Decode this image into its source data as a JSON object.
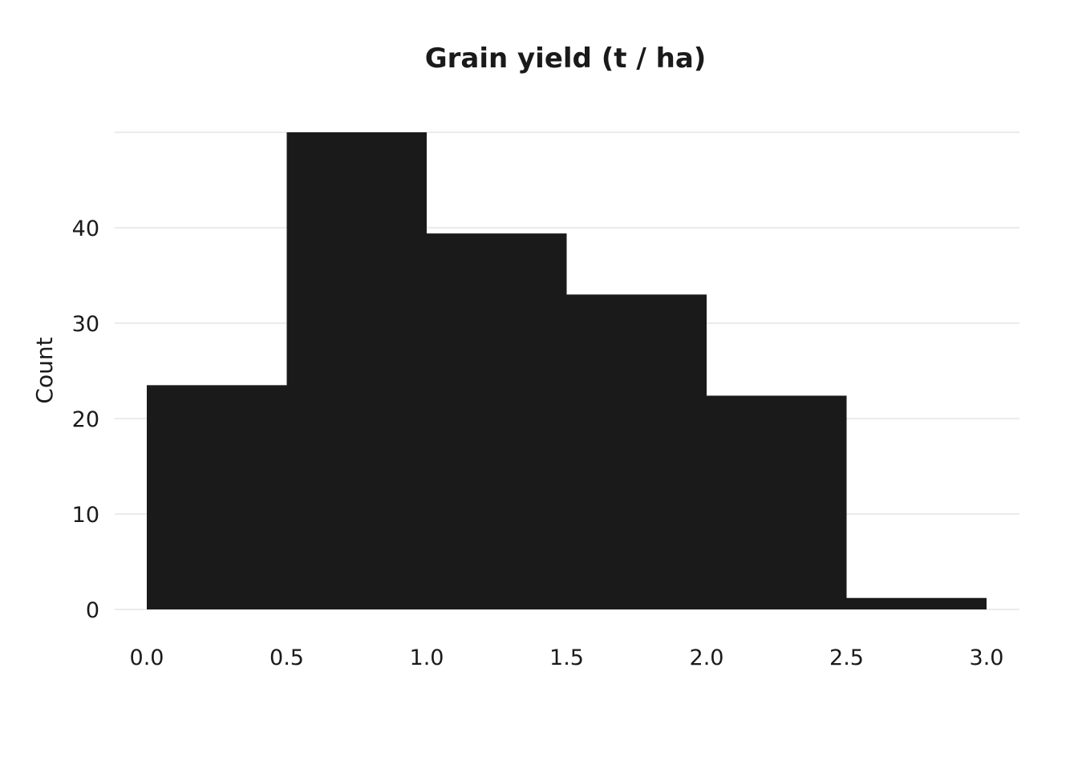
{
  "chart_data": {
    "type": "bar",
    "title": "Grain yield (t / ha)",
    "xlabel": "",
    "ylabel": "Count",
    "bin_edges": [
      0.0,
      0.5,
      1.0,
      1.5,
      2.0,
      2.5,
      3.0
    ],
    "values": [
      23.5,
      50,
      39.4,
      33,
      22.4,
      1.2
    ],
    "xlim": [
      0,
      3
    ],
    "ylim": [
      0,
      50
    ],
    "x_ticks": [
      0.0,
      0.5,
      1.0,
      1.5,
      2.0,
      2.5,
      3.0
    ],
    "x_tick_labels": [
      "0.0",
      "0.5",
      "1.0",
      "1.5",
      "2.0",
      "2.5",
      "3.0"
    ],
    "y_ticks": [
      0,
      10,
      20,
      30,
      40
    ],
    "y_tick_labels": [
      "0",
      "10",
      "20",
      "30",
      "40"
    ],
    "grid": "horizontal",
    "legend": "none",
    "colors": {
      "bar": "#1a1a1a",
      "grid": "#ebebeb",
      "text": "#1a1a1a",
      "background": "#ffffff"
    }
  }
}
